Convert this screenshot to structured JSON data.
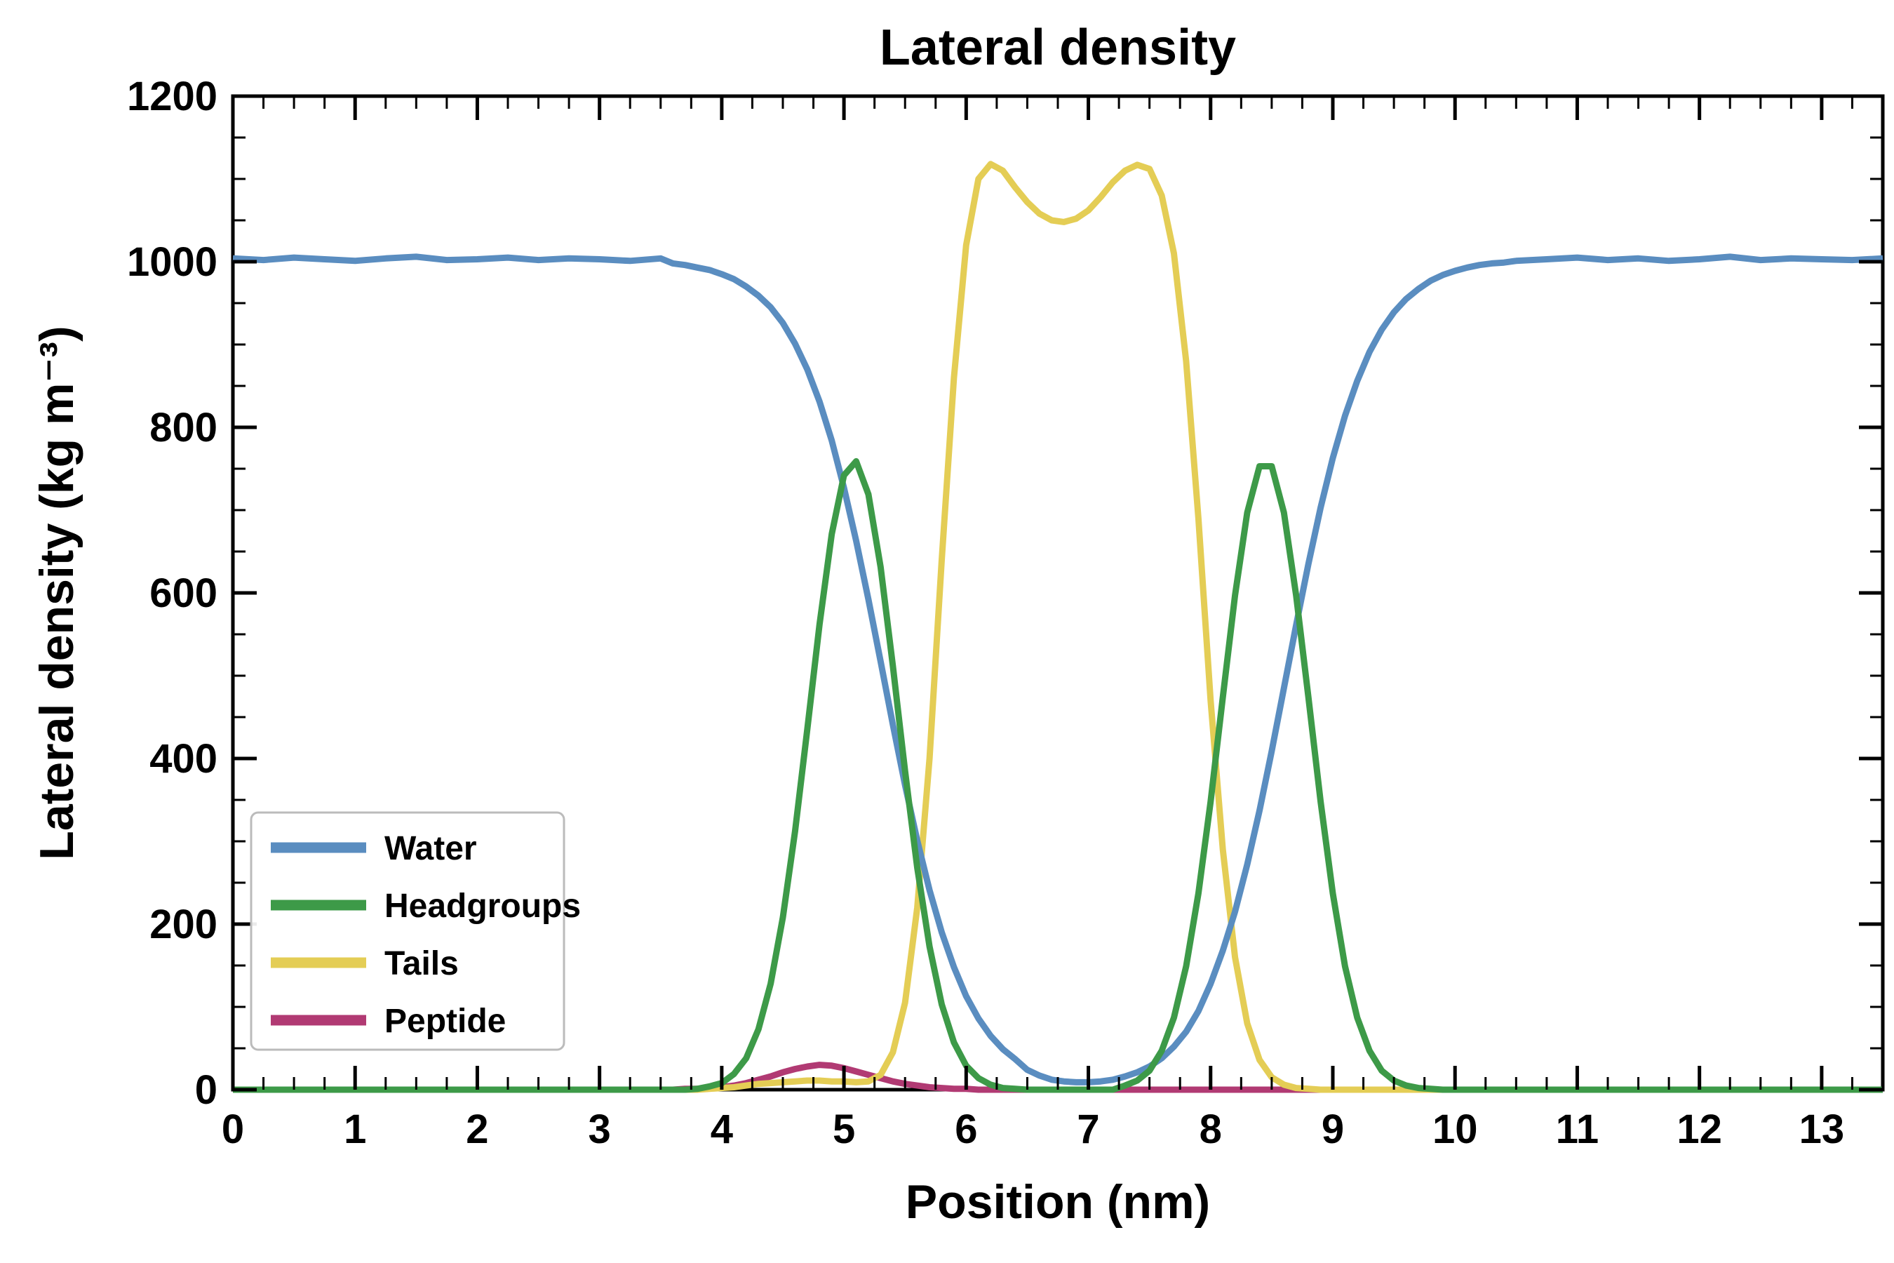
{
  "figure": {
    "background": "#ffffff",
    "axis_color": "#000000",
    "legend_border_color": "#bbbbbb",
    "legend_background": "#ffffff"
  },
  "chart_data": {
    "type": "line",
    "title": "Lateral density",
    "xlabel": "Position (nm)",
    "ylabel": "Lateral density (kg m⁻³)",
    "xlim": [
      0,
      13.5
    ],
    "ylim": [
      0,
      1200
    ],
    "x_major_ticks": [
      0,
      1,
      2,
      3,
      4,
      5,
      6,
      7,
      8,
      9,
      10,
      11,
      12,
      13
    ],
    "x_minor_step": 0.25,
    "y_major_ticks": [
      0,
      200,
      400,
      600,
      800,
      1000,
      1200
    ],
    "y_minor_step": 50,
    "grid": false,
    "tick_direction": "in",
    "legend_position": "lower-left",
    "x": [
      0,
      0.25,
      0.5,
      0.75,
      1,
      1.25,
      1.5,
      1.75,
      2,
      2.25,
      2.5,
      2.75,
      3,
      3.25,
      3.5,
      3.6,
      3.7,
      3.8,
      3.9,
      4,
      4.1,
      4.2,
      4.3,
      4.4,
      4.5,
      4.6,
      4.7,
      4.8,
      4.9,
      5,
      5.1,
      5.2,
      5.3,
      5.4,
      5.5,
      5.6,
      5.7,
      5.8,
      5.9,
      6,
      6.1,
      6.2,
      6.3,
      6.4,
      6.5,
      6.6,
      6.7,
      6.8,
      6.9,
      7,
      7.1,
      7.2,
      7.3,
      7.4,
      7.5,
      7.6,
      7.7,
      7.8,
      7.9,
      8,
      8.1,
      8.2,
      8.3,
      8.4,
      8.5,
      8.6,
      8.7,
      8.8,
      8.9,
      9,
      9.1,
      9.2,
      9.3,
      9.4,
      9.5,
      9.6,
      9.7,
      9.8,
      9.9,
      10,
      10.1,
      10.2,
      10.3,
      10.4,
      10.5,
      10.75,
      11,
      11.25,
      11.5,
      11.75,
      12,
      12.25,
      12.5,
      12.75,
      13,
      13.25,
      13.5
    ],
    "series": [
      {
        "name": "Water",
        "color": "#5a8dc0",
        "z": 2,
        "values": [
          1004,
          1002,
          1005,
          1003,
          1001,
          1004,
          1006,
          1002,
          1003,
          1005,
          1002,
          1004,
          1003,
          1001,
          1004,
          998,
          996,
          993,
          990,
          985,
          979,
          970,
          959,
          945,
          926,
          901,
          870,
          831,
          784,
          727,
          663,
          592,
          517,
          441,
          368,
          301,
          241,
          190,
          148,
          113,
          86,
          65,
          49,
          37,
          24,
          17,
          12,
          10,
          9,
          9,
          10,
          12,
          16,
          21,
          28,
          38,
          52,
          70,
          95,
          128,
          168,
          215,
          272,
          337,
          409,
          485,
          561,
          635,
          703,
          763,
          814,
          856,
          891,
          918,
          939,
          955,
          967,
          977,
          984,
          989,
          993,
          996,
          998,
          999,
          1001,
          1003,
          1005,
          1002,
          1004,
          1001,
          1003,
          1006,
          1002,
          1004,
          1003,
          1002,
          1004
        ]
      },
      {
        "name": "Headgroups",
        "color": "#3d9a48",
        "z": 3,
        "values": [
          0,
          0,
          0,
          0,
          0,
          0,
          0,
          0,
          0,
          0,
          0,
          0,
          0,
          0,
          0,
          0,
          0,
          1,
          4,
          8,
          19,
          38,
          73,
          128,
          208,
          312,
          435,
          562,
          671,
          742,
          759,
          719,
          631,
          512,
          385,
          268,
          173,
          103,
          57,
          29,
          14,
          6,
          2,
          1,
          0,
          0,
          0,
          0,
          0,
          0,
          0,
          0,
          5,
          11,
          23,
          47,
          87,
          149,
          237,
          348,
          474,
          597,
          697,
          753,
          753,
          697,
          597,
          474,
          348,
          237,
          149,
          87,
          47,
          23,
          11,
          5,
          2,
          1,
          0,
          0,
          0,
          0,
          0,
          0,
          0,
          0,
          0,
          0,
          0,
          0,
          0,
          0,
          0,
          0,
          0,
          0,
          0
        ]
      },
      {
        "name": "Tails",
        "color": "#e4cd55",
        "z": 1,
        "values": [
          0,
          0,
          0,
          0,
          0,
          0,
          0,
          0,
          0,
          0,
          0,
          0,
          0,
          0,
          0,
          0,
          0,
          0,
          1,
          2,
          3,
          5,
          7,
          8,
          9,
          10,
          11,
          11,
          10,
          10,
          9,
          10,
          18,
          45,
          105,
          220,
          400,
          640,
          860,
          1020,
          1100,
          1118,
          1110,
          1090,
          1072,
          1058,
          1050,
          1048,
          1052,
          1062,
          1078,
          1096,
          1110,
          1117,
          1112,
          1080,
          1010,
          880,
          690,
          470,
          290,
          160,
          80,
          36,
          15,
          6,
          2,
          1,
          0,
          0,
          0,
          0,
          0,
          0,
          0,
          0,
          0,
          0,
          0,
          0,
          0,
          0,
          0,
          0,
          0,
          0,
          0,
          0,
          0,
          0,
          0,
          0,
          0,
          0,
          0,
          0,
          0
        ]
      },
      {
        "name": "Peptide",
        "color": "#b13a73",
        "z": 0,
        "values": [
          0,
          0,
          0,
          0,
          0,
          0,
          0,
          0,
          0,
          0,
          0,
          0,
          0,
          0,
          0,
          0,
          1,
          1,
          2,
          3,
          5,
          8,
          12,
          16,
          21,
          25,
          28,
          30,
          29,
          26,
          22,
          18,
          14,
          10,
          7,
          5,
          3,
          2,
          1,
          1,
          0,
          0,
          0,
          0,
          0,
          0,
          0,
          0,
          0,
          0,
          0,
          0,
          0,
          0,
          0,
          0,
          0,
          0,
          0,
          0,
          0,
          0,
          0,
          0,
          0,
          0,
          0,
          0,
          0,
          0,
          0,
          0,
          0,
          0,
          0,
          0,
          0,
          0,
          0,
          0,
          0,
          0,
          0,
          0,
          0,
          0,
          0,
          0,
          0,
          0,
          0,
          0,
          0,
          0,
          0,
          0,
          0
        ]
      }
    ]
  }
}
